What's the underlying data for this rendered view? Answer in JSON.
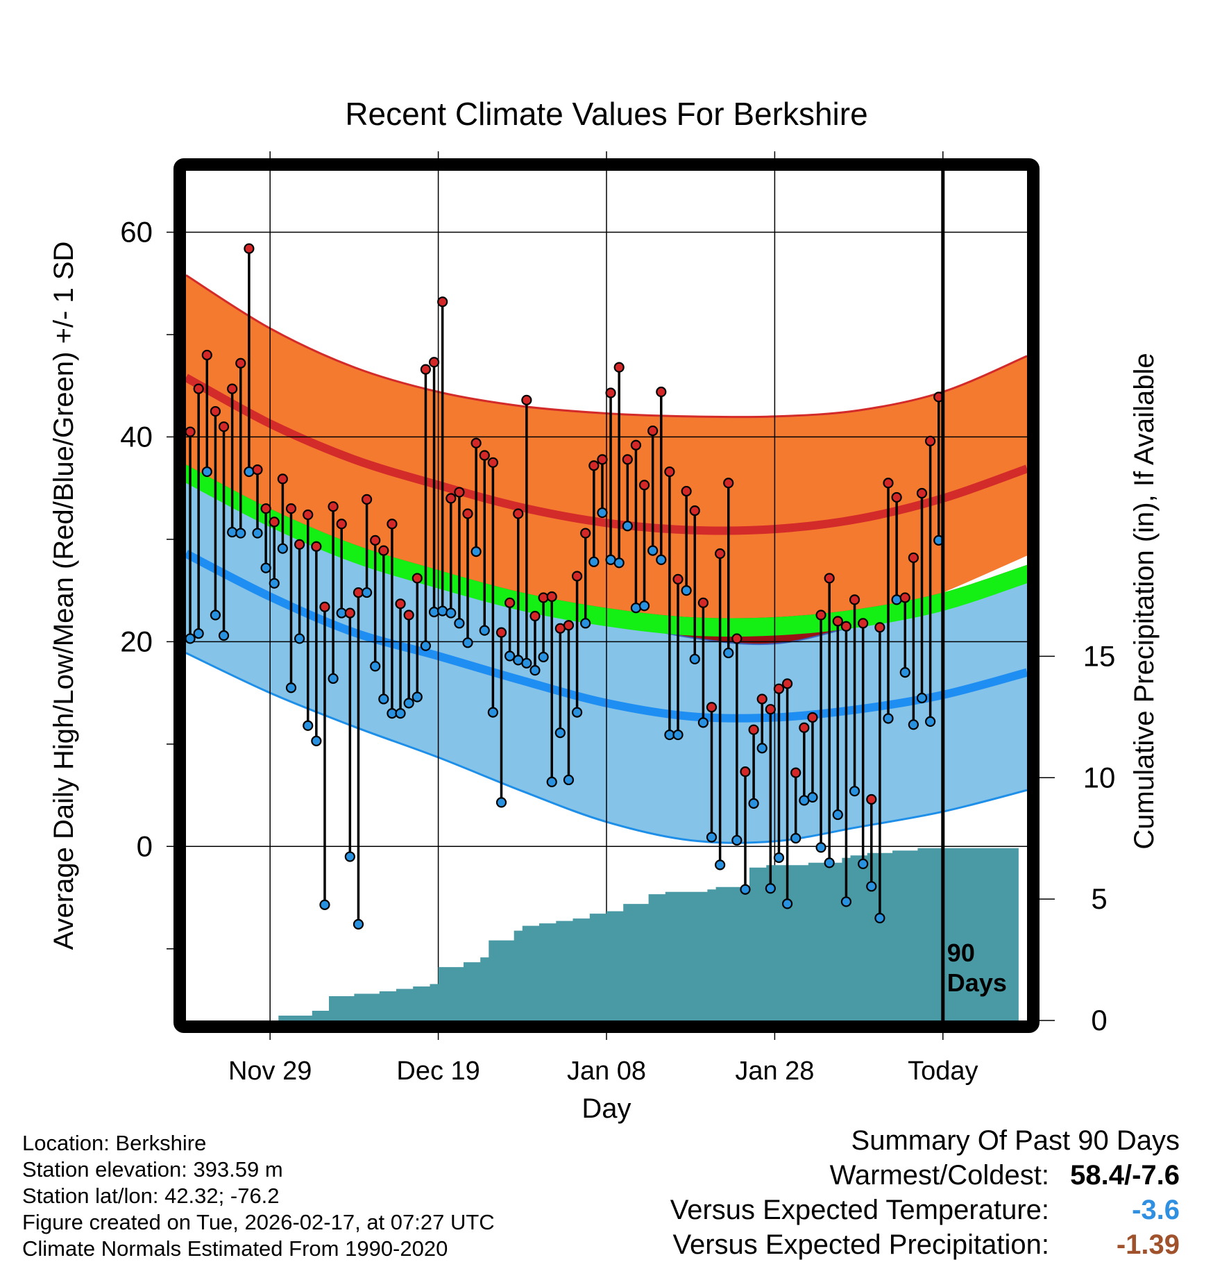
{
  "chart_data": {
    "type": "line",
    "title": "Recent Climate Values For Berkshire",
    "xlabel": "Day",
    "ylabel_left": "Average Daily High/Low/Mean (Red/Blue/Green) +/- 1 SD",
    "ylabel_right": "Cumulative Precipitation (in), If Available",
    "x_range": [
      -90,
      10
    ],
    "ylim_left": [
      -17,
      66
    ],
    "ylim_right": [
      0,
      35
    ],
    "left_ticks": [
      "60",
      "40",
      "20",
      "0"
    ],
    "left_tick_values": [
      60,
      40,
      20,
      0
    ],
    "right_ticks": [
      "15",
      "10",
      "5",
      "0"
    ],
    "right_tick_values": [
      15,
      10,
      5,
      0
    ],
    "x_ticks": [
      "Nov 29",
      "Dec 19",
      "Jan 08",
      "Jan 28",
      "Today"
    ],
    "x_tick_days": [
      -80,
      -60,
      -40,
      -20,
      0
    ],
    "today_day": 0,
    "window_label_1": "90",
    "window_label_2": "Days",
    "normals": {
      "days": [
        -90,
        -80,
        -70,
        -60,
        -50,
        -40,
        -30,
        -20,
        -10,
        0,
        10
      ],
      "high_plus_sd": [
        55.8,
        50.6,
        46.8,
        44.4,
        43.0,
        42.3,
        42.0,
        42.0,
        42.6,
        44.4,
        47.9
      ],
      "high_mean": [
        45.8,
        41.3,
        37.8,
        35.3,
        33.1,
        31.6,
        30.9,
        31.0,
        32.0,
        34.0,
        36.9
      ],
      "high_minus_sd": [
        35.7,
        32.0,
        28.8,
        26.2,
        24.0,
        22.2,
        20.4,
        19.8,
        21.6,
        24.8,
        28.4
      ],
      "mean_upper": [
        37.3,
        33.0,
        29.5,
        27.0,
        24.8,
        23.3,
        22.4,
        22.4,
        23.2,
        24.8,
        27.5
      ],
      "mean_lower": [
        35.5,
        31.2,
        27.7,
        25.2,
        23.0,
        21.5,
        20.6,
        20.6,
        21.4,
        23.0,
        25.7
      ],
      "low_plus_sd": [
        35.7,
        32.0,
        28.8,
        26.2,
        24.0,
        22.2,
        20.4,
        19.8,
        21.6,
        23.6,
        26.0
      ],
      "low_mean": [
        28.6,
        24.4,
        20.9,
        18.6,
        16.2,
        14.0,
        12.7,
        12.6,
        13.4,
        14.8,
        17.0
      ],
      "low_minus_sd": [
        18.9,
        15.0,
        11.7,
        8.7,
        5.4,
        2.4,
        0.6,
        0.5,
        1.9,
        3.4,
        5.5
      ]
    },
    "series": [
      {
        "name": "Daily High",
        "color": "#d42828",
        "values": [
          40.5,
          44.7,
          48.0,
          42.5,
          41.0,
          44.7,
          47.2,
          58.4,
          36.8,
          33.0,
          31.7,
          35.9,
          33.0,
          29.5,
          32.4,
          29.3,
          23.4,
          33.2,
          31.5,
          22.8,
          24.8,
          33.9,
          29.9,
          28.9,
          31.5,
          23.7,
          22.6,
          26.2,
          46.6,
          47.3,
          53.2,
          34.0,
          34.6,
          32.5,
          39.4,
          38.2,
          37.5,
          20.9,
          23.8,
          32.5,
          43.6,
          22.5,
          24.3,
          24.4,
          21.3,
          21.6,
          26.4,
          30.6,
          37.2,
          37.8,
          44.3,
          46.8,
          37.8,
          39.2,
          35.3,
          40.6,
          44.4,
          36.6,
          26.1,
          34.7,
          32.8,
          23.8,
          13.6,
          28.6,
          35.5,
          20.3,
          7.3,
          11.4,
          14.4,
          13.4,
          15.4,
          15.9,
          7.2,
          11.6,
          12.6,
          22.6,
          26.2,
          22.0,
          21.5,
          24.1,
          21.8,
          4.6,
          21.4,
          35.5,
          34.1,
          24.3,
          28.2,
          34.5,
          39.6,
          43.9
        ]
      },
      {
        "name": "Daily Low",
        "color": "#2891e0",
        "values": [
          20.3,
          20.8,
          36.6,
          22.6,
          20.6,
          30.7,
          30.6,
          36.6,
          30.6,
          27.2,
          25.7,
          29.1,
          15.5,
          20.3,
          11.8,
          10.3,
          -5.7,
          16.4,
          22.8,
          -1.0,
          -7.6,
          24.8,
          17.6,
          14.4,
          13.0,
          13.0,
          14.0,
          14.6,
          19.6,
          22.9,
          23.0,
          22.8,
          21.8,
          19.9,
          28.8,
          21.1,
          13.1,
          4.3,
          18.6,
          18.2,
          17.9,
          17.2,
          18.5,
          6.3,
          11.1,
          6.5,
          13.1,
          21.8,
          27.8,
          32.6,
          28.0,
          27.7,
          31.3,
          23.3,
          23.5,
          28.9,
          28.0,
          10.9,
          10.9,
          25.0,
          18.3,
          12.1,
          0.9,
          -1.8,
          18.9,
          0.6,
          -4.2,
          4.2,
          9.6,
          -4.1,
          -1.1,
          -5.6,
          0.8,
          4.5,
          4.8,
          -0.1,
          -1.6,
          3.1,
          -5.4,
          5.4,
          -1.7,
          -3.9,
          -7.0,
          12.5,
          24.1,
          17.0,
          11.9,
          14.5,
          12.2,
          29.9
        ]
      },
      {
        "name": "Cumulative Precipitation",
        "color": "#4a9aa5",
        "days": [
          -89,
          -84,
          -79,
          -75,
          -73,
          -70,
          -69,
          -67,
          -65,
          -63,
          -61,
          -60,
          -58,
          -57,
          -55,
          -54,
          -51,
          -50,
          -48,
          -46,
          -44,
          -42,
          -40,
          -38,
          -37,
          -35,
          -34,
          -33,
          -31,
          -30,
          -28,
          -27,
          -25,
          -24,
          -23,
          -21,
          -19,
          -17,
          -16,
          -14,
          -12,
          -11,
          -10,
          -9,
          -6,
          -4,
          -3,
          -2,
          -1,
          0,
          9
        ],
        "values": [
          0.0,
          0.0,
          0.2,
          0.4,
          1.0,
          1.1,
          1.1,
          1.2,
          1.3,
          1.4,
          1.5,
          2.2,
          2.2,
          2.4,
          2.6,
          3.3,
          3.7,
          3.9,
          4.0,
          4.1,
          4.2,
          4.4,
          4.5,
          4.8,
          4.8,
          5.2,
          5.2,
          5.3,
          5.3,
          5.3,
          5.4,
          5.5,
          5.5,
          5.5,
          6.3,
          6.4,
          6.4,
          6.4,
          6.5,
          6.5,
          6.7,
          6.8,
          6.8,
          6.9,
          7.0,
          7.0,
          7.1,
          7.1,
          7.1,
          7.1,
          7.1
        ]
      }
    ]
  },
  "info": {
    "location": "Location: Berkshire",
    "elevation": "Station elevation: 393.59 m",
    "latlon": "Station lat/lon: 42.32; -76.2",
    "created": "Figure created on Tue, 2026-02-17, at 07:27 UTC",
    "normals": "Climate Normals Estimated From 1990-2020"
  },
  "summary": {
    "title": "Summary Of Past 90 Days",
    "warm_cold_label": "Warmest/Coldest:",
    "warm_cold_value": "58.4/-7.6",
    "temp_label": "Versus Expected Temperature:",
    "temp_value": "-3.6",
    "temp_color": "#2f8fe0",
    "precip_label": "Versus Expected Precipitation:",
    "precip_value": "-1.39",
    "precip_color": "#a0522d"
  }
}
